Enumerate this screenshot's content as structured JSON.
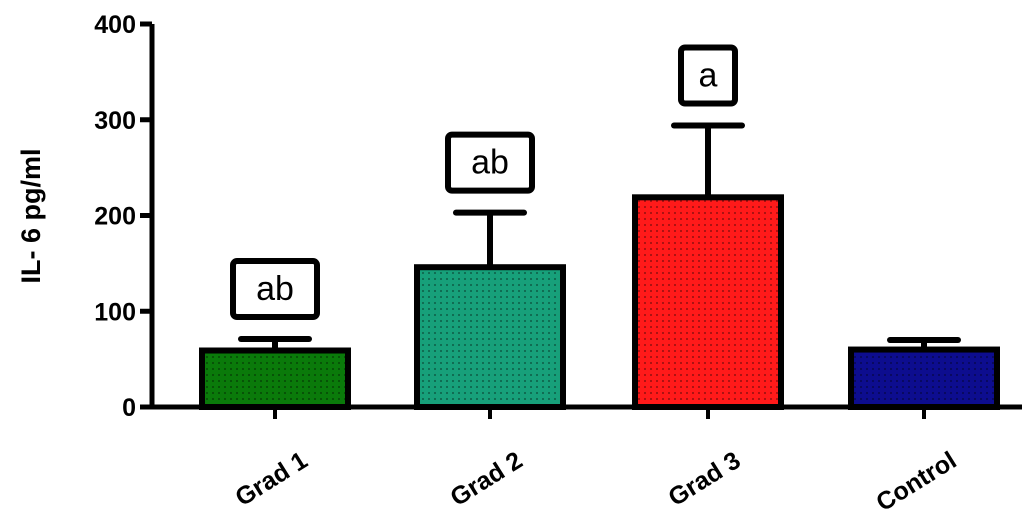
{
  "chart_data": {
    "type": "bar",
    "title": "",
    "xlabel": "",
    "ylabel": "IL- 6 pg/ml",
    "ylim": [
      0,
      400
    ],
    "yticks": [
      0,
      100,
      200,
      300,
      400
    ],
    "categories": [
      "Grad 1",
      "Grad 2",
      "Grad 3",
      "Control"
    ],
    "values": [
      59,
      146,
      219,
      60
    ],
    "error_upper": [
      71,
      203,
      294,
      70
    ],
    "significance_labels": [
      "ab",
      "ab",
      "a",
      ""
    ],
    "bar_colors": [
      "#0a7a0a",
      "#17a07a",
      "#ff1a1a",
      "#0d0d8f"
    ],
    "fill_pattern": "dotted",
    "grid": false,
    "legend": "none"
  }
}
